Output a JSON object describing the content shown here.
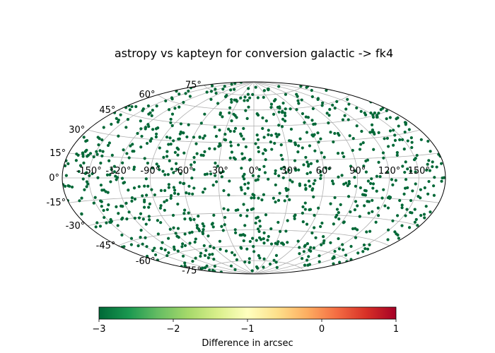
{
  "chart_data": {
    "type": "scatter",
    "projection": "aitoff-hammer",
    "title": "astropy vs kapteyn for conversion galactic -> fk4",
    "lon_ticks": [
      "-150°",
      "-120°",
      "-90°",
      "-60°",
      "-30°",
      "0°",
      "30°",
      "60°",
      "90°",
      "120°",
      "150°"
    ],
    "lat_ticks": [
      "75°",
      "60°",
      "45°",
      "30°",
      "15°",
      "0°",
      "-15°",
      "-30°",
      "-45°",
      "-60°",
      "-75°"
    ],
    "grid": true,
    "point_color": "#006837",
    "point_value": -3,
    "point_count": 1000,
    "colorbar": {
      "label": "Difference in arcsec",
      "range": [
        -3,
        1
      ],
      "ticks": [
        "−3",
        "−2",
        "−1",
        "0",
        "1"
      ],
      "colormap": "RdYlGn_r",
      "stops": [
        "#006837",
        "#1a9850",
        "#66bd63",
        "#a6d96a",
        "#d9ef8b",
        "#ffffbf",
        "#fee08b",
        "#fdae61",
        "#f46d43",
        "#d73027",
        "#a50026"
      ]
    }
  }
}
